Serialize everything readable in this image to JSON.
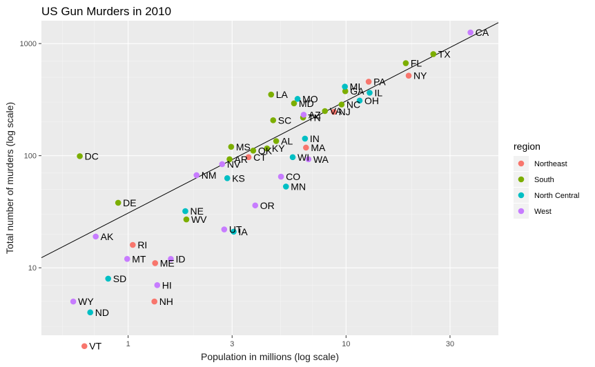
{
  "chart_data": {
    "type": "scatter",
    "title": "US Gun Murders in 2010",
    "xlabel": "Population in millions (log scale)",
    "ylabel": "Total number of murders (log scale)",
    "x_scale": "log10",
    "y_scale": "log10",
    "xlim": [
      0.4,
      50
    ],
    "ylim": [
      2.5,
      1600
    ],
    "x_ticks": [
      1,
      3,
      10,
      30
    ],
    "y_ticks": [
      10,
      100,
      1000
    ],
    "grid": true,
    "legend": {
      "title": "region",
      "position": "right"
    },
    "colors": {
      "Northeast": "#F8766D",
      "South": "#7CAE00",
      "North Central": "#00BFC4",
      "West": "#C77CFF"
    },
    "regression_line": {
      "slope": 1,
      "intercept_log10": 1.4878
    },
    "series": [
      {
        "name": "Northeast",
        "points": [
          {
            "label": "PA",
            "x": 12.7,
            "y": 457
          },
          {
            "label": "NY",
            "x": 19.38,
            "y": 517
          },
          {
            "label": "NJ",
            "x": 8.79,
            "y": 246
          },
          {
            "label": "MA",
            "x": 6.55,
            "y": 118
          },
          {
            "label": "CT",
            "x": 3.57,
            "y": 97
          },
          {
            "label": "RI",
            "x": 1.05,
            "y": 16
          },
          {
            "label": "ME",
            "x": 1.33,
            "y": 11
          },
          {
            "label": "NH",
            "x": 1.32,
            "y": 5
          },
          {
            "label": "VT",
            "x": 0.63,
            "y": 2
          }
        ]
      },
      {
        "name": "South",
        "points": [
          {
            "label": "TX",
            "x": 25.15,
            "y": 805
          },
          {
            "label": "FL",
            "x": 18.8,
            "y": 669
          },
          {
            "label": "GA",
            "x": 9.92,
            "y": 376
          },
          {
            "label": "NC",
            "x": 9.54,
            "y": 286
          },
          {
            "label": "VA",
            "x": 8.0,
            "y": 250
          },
          {
            "label": "TN",
            "x": 6.35,
            "y": 219
          },
          {
            "label": "LA",
            "x": 4.53,
            "y": 351
          },
          {
            "label": "MD",
            "x": 5.77,
            "y": 293
          },
          {
            "label": "SC",
            "x": 4.63,
            "y": 207
          },
          {
            "label": "AL",
            "x": 4.78,
            "y": 135
          },
          {
            "label": "KY",
            "x": 4.34,
            "y": 116
          },
          {
            "label": "OK",
            "x": 3.75,
            "y": 111
          },
          {
            "label": "MS",
            "x": 2.97,
            "y": 120
          },
          {
            "label": "AR",
            "x": 2.92,
            "y": 93
          },
          {
            "label": "WV",
            "x": 1.85,
            "y": 27
          },
          {
            "label": "DE",
            "x": 0.9,
            "y": 38
          },
          {
            "label": "DC",
            "x": 0.6,
            "y": 99
          }
        ]
      },
      {
        "name": "North Central",
        "points": [
          {
            "label": "IL",
            "x": 12.83,
            "y": 364
          },
          {
            "label": "OH",
            "x": 11.54,
            "y": 310
          },
          {
            "label": "MI",
            "x": 9.88,
            "y": 413
          },
          {
            "label": "MO",
            "x": 5.99,
            "y": 321
          },
          {
            "label": "IN",
            "x": 6.48,
            "y": 142
          },
          {
            "label": "WI",
            "x": 5.69,
            "y": 97
          },
          {
            "label": "MN",
            "x": 5.3,
            "y": 53
          },
          {
            "label": "KS",
            "x": 2.85,
            "y": 63
          },
          {
            "label": "IA",
            "x": 3.05,
            "y": 21
          },
          {
            "label": "NE",
            "x": 1.83,
            "y": 32
          },
          {
            "label": "SD",
            "x": 0.81,
            "y": 8
          },
          {
            "label": "ND",
            "x": 0.67,
            "y": 4
          }
        ]
      },
      {
        "name": "West",
        "points": [
          {
            "label": "CA",
            "x": 37.25,
            "y": 1257
          },
          {
            "label": "AZ",
            "x": 6.39,
            "y": 232
          },
          {
            "label": "WA",
            "x": 6.72,
            "y": 93
          },
          {
            "label": "CO",
            "x": 5.03,
            "y": 65
          },
          {
            "label": "OR",
            "x": 3.83,
            "y": 36
          },
          {
            "label": "NV",
            "x": 2.7,
            "y": 84
          },
          {
            "label": "UT",
            "x": 2.76,
            "y": 22
          },
          {
            "label": "NM",
            "x": 2.06,
            "y": 67
          },
          {
            "label": "ID",
            "x": 1.57,
            "y": 12
          },
          {
            "label": "HI",
            "x": 1.36,
            "y": 7
          },
          {
            "label": "MT",
            "x": 0.99,
            "y": 12
          },
          {
            "label": "AK",
            "x": 0.71,
            "y": 19
          },
          {
            "label": "WY",
            "x": 0.56,
            "y": 5
          }
        ]
      }
    ]
  }
}
